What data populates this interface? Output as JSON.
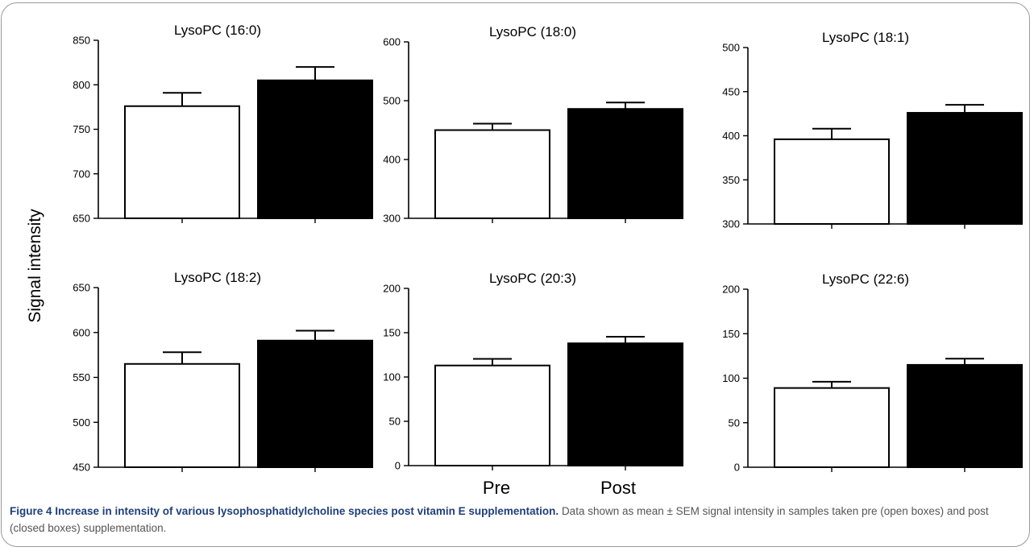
{
  "figure": {
    "y_axis_label": "Signal intensity",
    "x_axis_labels": [
      "Pre",
      "Post"
    ],
    "caption_title": "Figure 4 Increase in intensity of various lysophosphatidylcholine species post vitamin E supplementation.",
    "caption_body": "Data shown as mean ± SEM signal intensity in samples taken pre (open boxes) and post (closed boxes) supplementation.",
    "colors": {
      "pre_fill": "#ffffff",
      "post_fill": "#000000",
      "axis": "#000000",
      "frame": "#9a9a9a",
      "caption_title": "#1f3f7a"
    }
  },
  "chart_data": [
    {
      "type": "bar",
      "title": "LysoPC (16:0)",
      "categories": [
        "Pre",
        "Post"
      ],
      "values": [
        776,
        805
      ],
      "errors": [
        15,
        15
      ],
      "ylim": [
        650,
        850
      ],
      "yticks": [
        650,
        700,
        750,
        800,
        850
      ],
      "grid": false,
      "legend": "none"
    },
    {
      "type": "bar",
      "title": "LysoPC (18:0)",
      "categories": [
        "Pre",
        "Post"
      ],
      "values": [
        450,
        486
      ],
      "errors": [
        11,
        11
      ],
      "ylim": [
        300,
        600
      ],
      "yticks": [
        300,
        400,
        500,
        600
      ],
      "grid": false,
      "legend": "none"
    },
    {
      "type": "bar",
      "title": "LysoPC  (18:1)",
      "categories": [
        "Pre",
        "Post"
      ],
      "values": [
        396,
        426
      ],
      "errors": [
        12,
        9
      ],
      "ylim": [
        300,
        500
      ],
      "yticks": [
        300,
        350,
        400,
        450,
        500
      ],
      "grid": false,
      "legend": "none"
    },
    {
      "type": "bar",
      "title": "LysoPC (18:2)",
      "categories": [
        "Pre",
        "Post"
      ],
      "values": [
        565,
        591
      ],
      "errors": [
        13,
        11
      ],
      "ylim": [
        450,
        650
      ],
      "yticks": [
        450,
        500,
        550,
        600,
        650
      ],
      "grid": false,
      "legend": "none"
    },
    {
      "type": "bar",
      "title": "LysoPC (20:3)",
      "categories": [
        "Pre",
        "Post"
      ],
      "values": [
        113,
        138
      ],
      "errors": [
        7.5,
        7.5
      ],
      "ylim": [
        0,
        200
      ],
      "yticks": [
        0,
        50,
        100,
        150,
        200
      ],
      "grid": false,
      "legend": "none"
    },
    {
      "type": "bar",
      "title": "LysoPC (22:6)",
      "categories": [
        "Pre",
        "Post"
      ],
      "values": [
        89,
        115
      ],
      "errors": [
        7,
        7
      ],
      "ylim": [
        0,
        200
      ],
      "yticks": [
        0,
        50,
        100,
        150,
        200
      ],
      "grid": false,
      "legend": "none"
    }
  ]
}
